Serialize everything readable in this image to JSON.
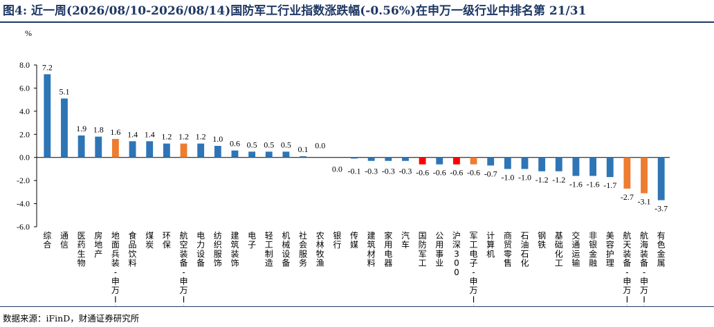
{
  "figure": {
    "title": "图4: 近一周(2026/08/10-2026/08/14)国防军工行业指数涨跌幅(-0.56%)在申万一级行业中排名第 21/31",
    "source": "数据来源：iFinD，财通证券研究所"
  },
  "colors": {
    "title": "#1f3864",
    "default_bar": "#2e75b6",
    "highlight_orange": "#ed7d31",
    "highlight_red": "#ff0000",
    "axis": "#000000"
  },
  "chart_data": {
    "type": "bar",
    "ylabel": "%",
    "ylim": [
      -6.0,
      8.0
    ],
    "yticks": [
      "8.0",
      "6.0",
      "4.0",
      "2.0",
      "0.0",
      "-2.0",
      "-4.0",
      "-6.0"
    ],
    "grid": false,
    "legend": "none",
    "categories": [
      "综合",
      "通信",
      "医药生物",
      "房地产",
      "地面兵装-申万II",
      "食品饮料",
      "煤炭",
      "环保",
      "航空装备-申万II",
      "电力设备",
      "纺织服饰",
      "建筑装饰",
      "电子",
      "轻工制造",
      "机械设备",
      "社会服务",
      "农林牧渔",
      "银行",
      "传媒",
      "建筑材料",
      "家用电器",
      "汽车",
      "国防军工",
      "公用事业",
      "沪深300",
      "军工电子-申万II",
      "计算机",
      "商贸零售",
      "石油石化",
      "钢铁",
      "基础化工",
      "交通运输",
      "非银金融",
      "美容护理",
      "航天装备-申万II",
      "航海装备-申万II",
      "有色金属"
    ],
    "values": [
      7.2,
      5.1,
      1.9,
      1.8,
      1.6,
      1.4,
      1.4,
      1.2,
      1.2,
      1.2,
      1.0,
      0.6,
      0.5,
      0.5,
      0.5,
      0.1,
      0.0,
      0.0,
      -0.1,
      -0.3,
      -0.3,
      -0.3,
      -0.6,
      -0.6,
      -0.6,
      -0.6,
      -0.7,
      -1.0,
      -1.0,
      -1.2,
      -1.2,
      -1.6,
      -1.6,
      -1.7,
      -2.7,
      -3.1,
      -3.7
    ],
    "data_labels": [
      "7.2",
      "5.1",
      "1.9",
      "1.8",
      "1.6",
      "1.4",
      "1.4",
      "1.2",
      "1.2",
      "1.2",
      "1.0",
      "0.6",
      "0.5",
      "0.5",
      "0.5",
      "0.1",
      "0.0",
      "0.0",
      "-0.1",
      "-0.3",
      "-0.3",
      "-0.3",
      "-0.6",
      "-0.6",
      "-0.6",
      "-0.6",
      "-0.7",
      "-1.0",
      "-1.0",
      "-1.2",
      "-1.2",
      "-1.6",
      "-1.6",
      "-1.7",
      "-2.7",
      "-3.1",
      "-3.7"
    ],
    "highlights": {
      "地面兵装-申万II": "orange",
      "航空装备-申万II": "orange",
      "国防军工": "red",
      "沪深300": "red",
      "军工电子-申万II": "orange",
      "航天装备-申万II": "orange",
      "航海装备-申万II": "orange"
    }
  }
}
